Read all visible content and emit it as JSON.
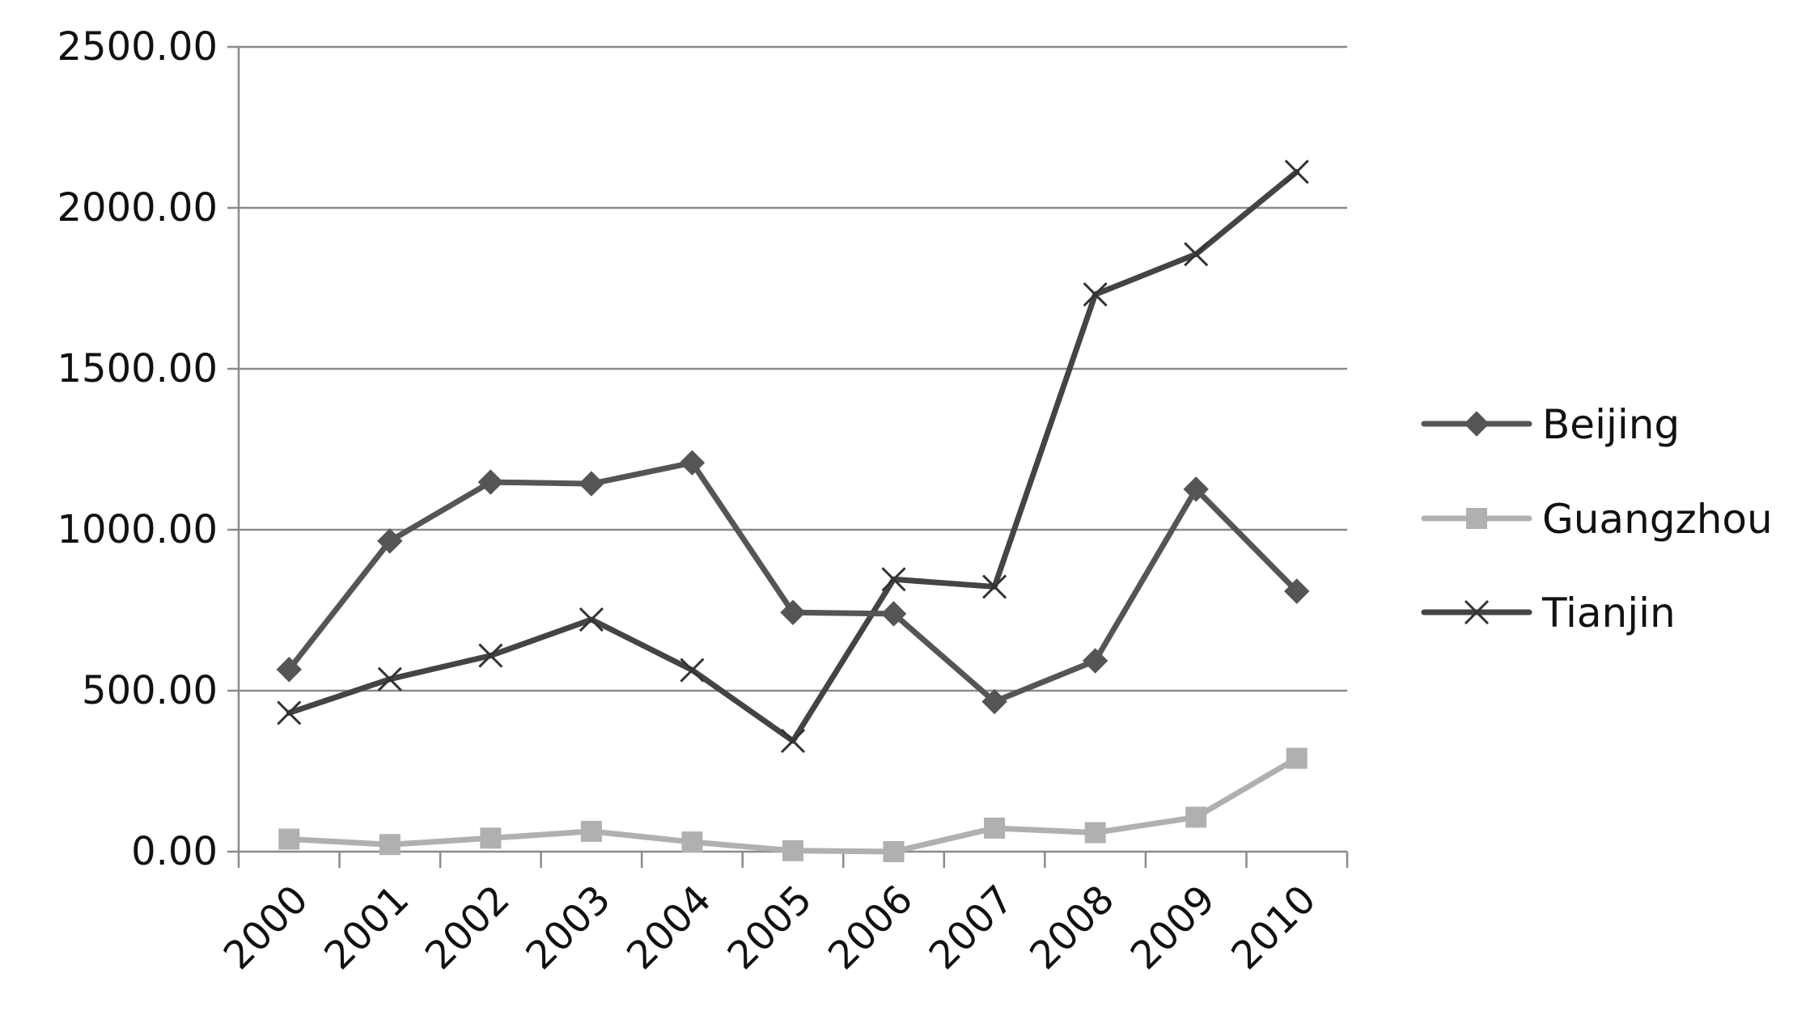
{
  "chart_data": {
    "type": "line",
    "categories": [
      "2000",
      "2001",
      "2002",
      "2003",
      "2004",
      "2005",
      "2006",
      "2007",
      "2008",
      "2009",
      "2010"
    ],
    "series": [
      {
        "name": "Beijing",
        "marker": "diamond",
        "color": "#555555",
        "values": [
          566,
          965,
          1148,
          1143,
          1208,
          743,
          739,
          466,
          593,
          1126,
          809
        ]
      },
      {
        "name": "Guangzhou",
        "marker": "square",
        "color": "#b0b0b0",
        "values": [
          39,
          22,
          42,
          63,
          30,
          3,
          0,
          73,
          59,
          107,
          290
        ]
      },
      {
        "name": "Tianjin",
        "marker": "x",
        "color": "#444444",
        "values": [
          431,
          536,
          609,
          721,
          564,
          344,
          846,
          823,
          1731,
          1856,
          2112
        ]
      }
    ],
    "y_ticks": [
      "0.00",
      "500.00",
      "1000.00",
      "1500.00",
      "2000.00",
      "2500.00"
    ],
    "ylim": [
      0,
      2500
    ],
    "title": "",
    "xlabel": "",
    "ylabel": "",
    "grid": "horizontal",
    "legend_position": "right",
    "x_tick_rotation": "-45"
  }
}
